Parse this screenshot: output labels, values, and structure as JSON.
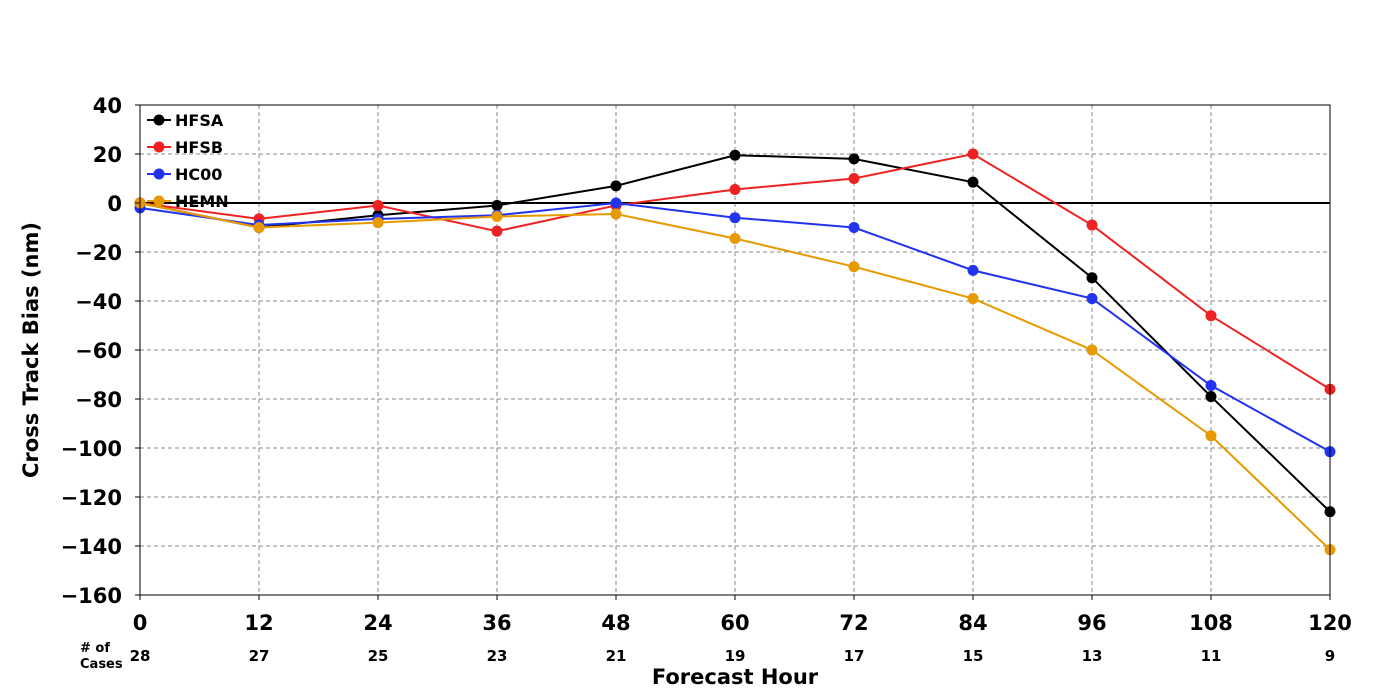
{
  "chart_data": {
    "type": "line",
    "xlabel": "Forecast Hour",
    "ylabel": "Cross Track Bias (nm)",
    "x": [
      0,
      12,
      24,
      36,
      48,
      60,
      72,
      84,
      96,
      108,
      120
    ],
    "xlim": [
      0,
      120
    ],
    "ylim": [
      -160,
      40
    ],
    "yticks": [
      40,
      20,
      0,
      -20,
      -40,
      -60,
      -80,
      -100,
      -120,
      -140,
      -160
    ],
    "grid": true,
    "legend_position": "top-left",
    "cases_label_line1": "# of",
    "cases_label_line2": "Cases",
    "cases": [
      "28",
      "27",
      "25",
      "23",
      "21",
      "19",
      "17",
      "15",
      "13",
      "11",
      "9"
    ],
    "series": [
      {
        "name": "HFSA",
        "color": "#000000",
        "values": [
          0,
          -10,
          -5,
          -1,
          7,
          19.5,
          18,
          8.5,
          -30.5,
          -79,
          -126
        ]
      },
      {
        "name": "HFSB",
        "color": "#ee2222",
        "values": [
          0,
          -6.5,
          -1,
          -11.5,
          -1,
          5.5,
          10,
          20,
          -9,
          -46,
          -76
        ]
      },
      {
        "name": "HC00",
        "color": "#2233ee",
        "values": [
          -2,
          -9,
          -6.5,
          -5,
          0,
          -6,
          -10,
          -27.5,
          -39,
          -74.5,
          -101.5
        ]
      },
      {
        "name": "HEMN",
        "color": "#e69a00",
        "values": [
          0,
          -10,
          -8,
          -5.5,
          -4.5,
          -14.5,
          -26,
          -39,
          -60,
          -95,
          -141.5
        ]
      }
    ]
  }
}
